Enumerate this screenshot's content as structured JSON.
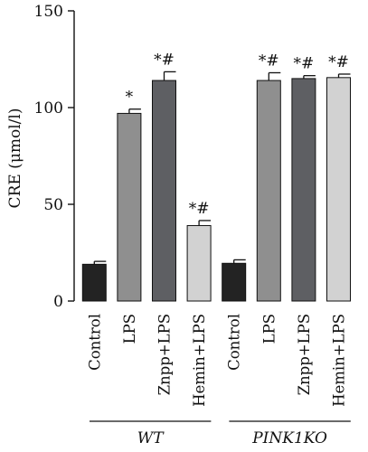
{
  "chart_data": {
    "type": "bar",
    "ylabel": "CRE (μmol/l)",
    "ylim": [
      0,
      150
    ],
    "yticks": [
      0,
      50,
      100,
      150
    ],
    "grid": false,
    "categories": [
      "Control",
      "LPS",
      "Znpp+LPS",
      "Hemin+LPS",
      "Control",
      "LPS",
      "Znpp+LPS",
      "Hemin+LPS"
    ],
    "values": [
      19,
      97,
      114,
      39,
      19.5,
      114,
      115,
      115.5
    ],
    "errors": [
      1.5,
      2.2,
      4.5,
      2.6,
      1.8,
      4.0,
      1.5,
      1.8
    ],
    "annotations": [
      "",
      "*",
      "*#",
      "*#",
      "",
      "*#",
      "*#",
      "*#"
    ],
    "colors": [
      "#232323",
      "#8f8f8f",
      "#5e5f63",
      "#d2d2d2",
      "#232323",
      "#8f8f8f",
      "#5e5f63",
      "#d2d2d2"
    ],
    "groups": [
      {
        "label": "WT",
        "categories": [
          0,
          1,
          2,
          3
        ]
      },
      {
        "label": "PINK1KO",
        "categories": [
          4,
          5,
          6,
          7
        ]
      }
    ]
  }
}
